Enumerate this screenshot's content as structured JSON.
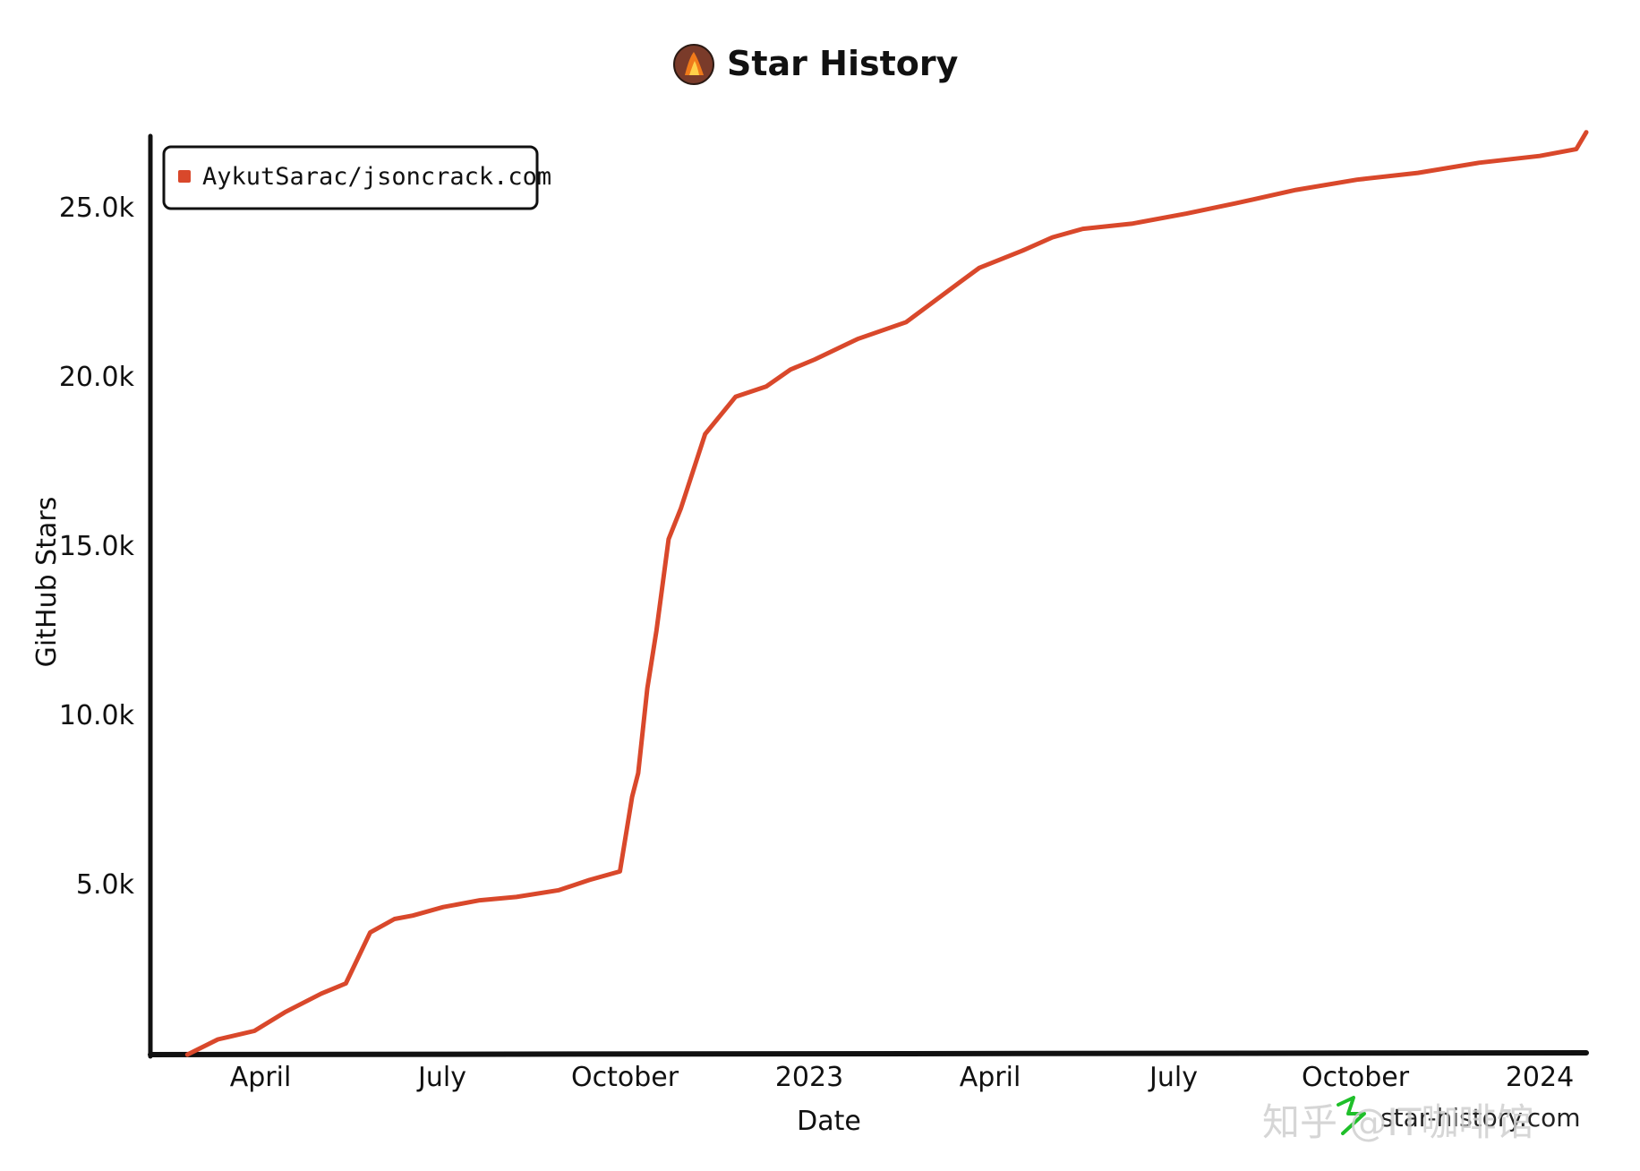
{
  "chart_data": {
    "type": "line",
    "title": "Star History",
    "xlabel": "Date",
    "ylabel": "GitHub Stars",
    "x_ticks": [
      "April",
      "July",
      "October",
      "2023",
      "April",
      "July",
      "October",
      "2024"
    ],
    "x_tick_months": [
      3,
      6,
      9,
      12,
      15,
      18,
      21,
      24
    ],
    "y_ticks": [
      "5.0k",
      "10.0k",
      "15.0k",
      "20.0k",
      "25.0k"
    ],
    "y_tick_values": [
      5000,
      10000,
      15000,
      20000,
      25000
    ],
    "xlim": [
      1.8,
      25.4
    ],
    "ylim": [
      0,
      27200
    ],
    "legend": {
      "position": "top-left"
    },
    "series": [
      {
        "name": "AykutSarac/jsoncrack.com",
        "color": "#d9482b",
        "x": [
          1.8,
          2.3,
          2.9,
          3.4,
          4.0,
          4.4,
          4.8,
          5.2,
          5.5,
          6.0,
          6.6,
          7.2,
          7.9,
          8.4,
          8.9,
          9.1,
          9.2,
          9.35,
          9.5,
          9.7,
          9.9,
          10.3,
          10.8,
          11.3,
          11.7,
          12.1,
          12.8,
          13.6,
          14.5,
          14.8,
          15.5,
          16.0,
          16.5,
          17.3,
          18.2,
          19.0,
          20.0,
          21.0,
          22.0,
          23.0,
          24.0,
          24.6,
          25.4
        ],
        "y": [
          0,
          450,
          700,
          1250,
          1800,
          2100,
          3600,
          4000,
          4100,
          4350,
          4550,
          4650,
          4850,
          5150,
          5400,
          7600,
          8300,
          10800,
          12500,
          15200,
          16100,
          18300,
          19400,
          19700,
          20200,
          20500,
          21100,
          21600,
          22800,
          23200,
          23700,
          24100,
          24350,
          24500,
          24800,
          25100,
          25500,
          25800,
          26000,
          26300,
          26500,
          26700,
          27200
        ]
      }
    ]
  },
  "watermarks": {
    "site": "star-history.com",
    "overlay": "知乎 @IT咖啡馆"
  },
  "colors": {
    "line": "#d9482b",
    "axis": "#111111"
  }
}
